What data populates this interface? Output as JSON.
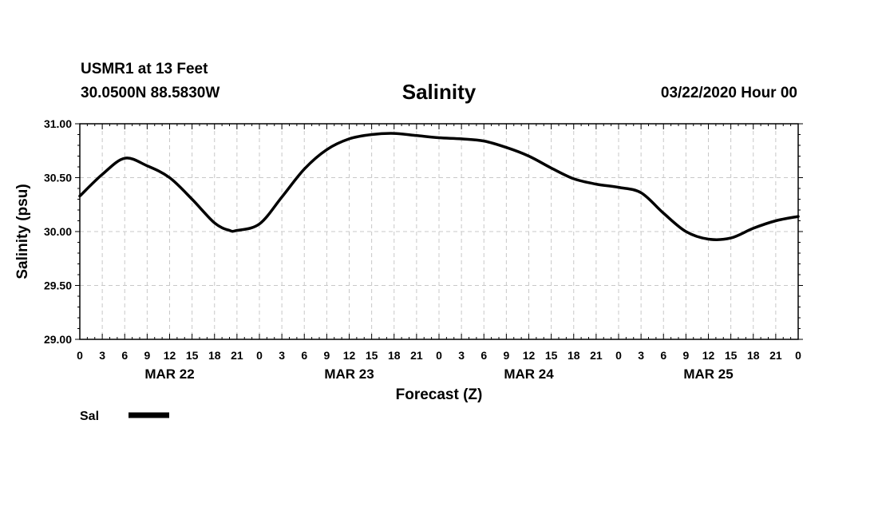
{
  "header": {
    "station": "USMR1 at 13 Feet",
    "coords": "30.0500N 88.5830W",
    "runtime": "03/22/2020 Hour 00"
  },
  "chart_data": {
    "type": "line",
    "title": "Salinity",
    "xlabel": "Forecast (Z)",
    "ylabel": "Salinity (psu)",
    "ylim": [
      29.0,
      31.0
    ],
    "yticks": [
      "29.00",
      "29.50",
      "30.00",
      "30.50",
      "31.00"
    ],
    "xlim": [
      0,
      96
    ],
    "x_unit": "forecast hour",
    "xtick_labels": [
      "0",
      "3",
      "6",
      "9",
      "12",
      "15",
      "18",
      "21",
      "0",
      "3",
      "6",
      "9",
      "12",
      "15",
      "18",
      "21",
      "0",
      "3",
      "6",
      "9",
      "12",
      "15",
      "18",
      "21",
      "0",
      "3",
      "6",
      "9",
      "12",
      "15",
      "18",
      "21",
      "0"
    ],
    "day_labels": [
      {
        "label": "MAR 22",
        "x": 12
      },
      {
        "label": "MAR 23",
        "x": 36
      },
      {
        "label": "MAR 24",
        "x": 60
      },
      {
        "label": "MAR 25",
        "x": 84
      }
    ],
    "grid": true,
    "legend_placement": "below-left",
    "series": [
      {
        "name": "Sal",
        "color": "#000000",
        "x": [
          0,
          3,
          6,
          9,
          12,
          15,
          18,
          20,
          21,
          24,
          27,
          30,
          33,
          36,
          39,
          42,
          45,
          48,
          51,
          54,
          57,
          60,
          63,
          66,
          69,
          72,
          75,
          78,
          81,
          84,
          87,
          90,
          93,
          96
        ],
        "y": [
          30.33,
          30.53,
          30.68,
          30.61,
          30.5,
          30.3,
          30.08,
          30.01,
          30.01,
          30.07,
          30.32,
          30.58,
          30.76,
          30.86,
          30.9,
          30.91,
          30.89,
          30.87,
          30.86,
          30.84,
          30.78,
          30.7,
          30.59,
          30.49,
          30.44,
          30.41,
          30.36,
          30.17,
          30.0,
          29.93,
          29.94,
          30.03,
          30.1,
          30.14
        ]
      }
    ]
  }
}
